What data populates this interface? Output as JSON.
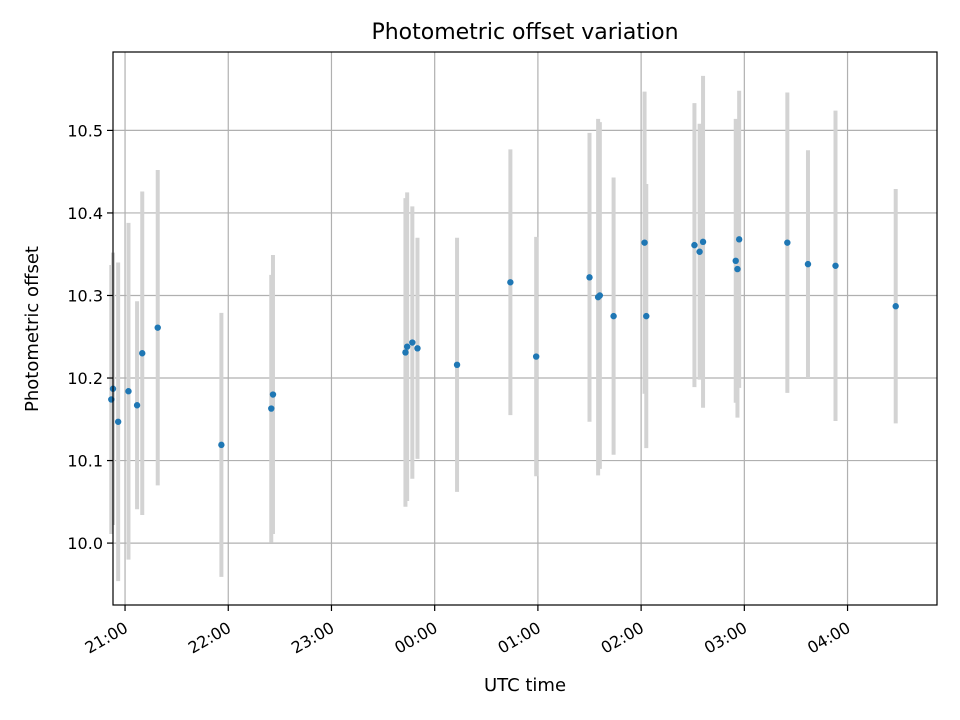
{
  "chart_data": {
    "type": "scatter",
    "title": "Photometric offset variation",
    "xlabel": "UTC time",
    "ylabel": "Photometric offset",
    "x_axis_type": "time",
    "x_start_date": "",
    "xlim": [
      "20:53",
      "04:52"
    ],
    "ylim": [
      9.925,
      10.595
    ],
    "x_ticks": [
      "21:00",
      "22:00",
      "23:00",
      "00:00",
      "01:00",
      "02:00",
      "03:00",
      "04:00"
    ],
    "y_ticks": [
      10.0,
      10.1,
      10.2,
      10.3,
      10.4,
      10.5
    ],
    "y_tick_labels": [
      "10.0",
      "10.1",
      "10.2",
      "10.3",
      "10.4",
      "10.5"
    ],
    "grid": true,
    "legend": "none",
    "colors": {
      "points": "#1f77b4",
      "errorbars": "#d3d3d3",
      "grid": "#b0b0b0"
    },
    "series": [
      {
        "points": [
          {
            "x": "20:52",
            "y": 10.174,
            "yerr": 0.163
          },
          {
            "x": "20:53",
            "y": 10.187,
            "yerr": 0.165
          },
          {
            "x": "20:56",
            "y": 10.147,
            "yerr": 0.193
          },
          {
            "x": "21:02",
            "y": 10.184,
            "yerr": 0.204
          },
          {
            "x": "21:07",
            "y": 10.167,
            "yerr": 0.126
          },
          {
            "x": "21:10",
            "y": 10.23,
            "yerr": 0.196
          },
          {
            "x": "21:19",
            "y": 10.261,
            "yerr": 0.191
          },
          {
            "x": "21:56",
            "y": 10.119,
            "yerr": 0.16
          },
          {
            "x": "22:25",
            "y": 10.163,
            "yerr": 0.162
          },
          {
            "x": "22:26",
            "y": 10.18,
            "yerr": 0.169
          },
          {
            "x": "23:43",
            "y": 10.231,
            "yerr": 0.187
          },
          {
            "x": "23:44",
            "y": 10.238,
            "yerr": 0.187
          },
          {
            "x": "23:47",
            "y": 10.243,
            "yerr": 0.165
          },
          {
            "x": "23:50",
            "y": 10.236,
            "yerr": 0.134
          },
          {
            "x": "00:13",
            "y": 10.216,
            "yerr": 0.154
          },
          {
            "x": "00:44",
            "y": 10.316,
            "yerr": 0.161
          },
          {
            "x": "00:59",
            "y": 10.226,
            "yerr": 0.145
          },
          {
            "x": "01:30",
            "y": 10.322,
            "yerr": 0.175
          },
          {
            "x": "01:35",
            "y": 10.298,
            "yerr": 0.216
          },
          {
            "x": "01:36",
            "y": 10.3,
            "yerr": 0.21
          },
          {
            "x": "01:44",
            "y": 10.275,
            "yerr": 0.168
          },
          {
            "x": "02:02",
            "y": 10.364,
            "yerr": 0.183
          },
          {
            "x": "02:03",
            "y": 10.275,
            "yerr": 0.16
          },
          {
            "x": "02:31",
            "y": 10.361,
            "yerr": 0.172
          },
          {
            "x": "02:34",
            "y": 10.353,
            "yerr": 0.155
          },
          {
            "x": "02:36",
            "y": 10.365,
            "yerr": 0.201
          },
          {
            "x": "02:55",
            "y": 10.342,
            "yerr": 0.172
          },
          {
            "x": "02:56",
            "y": 10.332,
            "yerr": 0.18
          },
          {
            "x": "02:57",
            "y": 10.368,
            "yerr": 0.18
          },
          {
            "x": "03:25",
            "y": 10.364,
            "yerr": 0.182
          },
          {
            "x": "03:37",
            "y": 10.338,
            "yerr": 0.138
          },
          {
            "x": "03:53",
            "y": 10.336,
            "yerr": 0.188
          },
          {
            "x": "04:28",
            "y": 10.287,
            "yerr": 0.142
          }
        ]
      }
    ]
  }
}
